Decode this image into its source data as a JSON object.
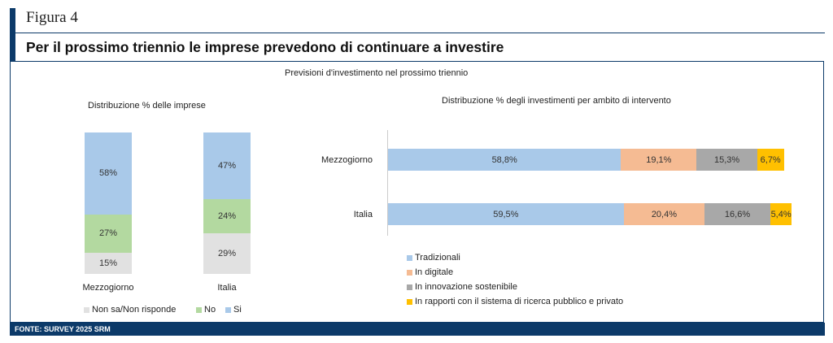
{
  "figure_label": "Figura 4",
  "title": "Per il prossimo triennio le imprese prevedono di continuare a investire",
  "subtitle": "Previsioni d'investimento nel prossimo triennio",
  "footer": "FONTE: SURVEY 2025 SRM",
  "colors": {
    "si": "#a9c9e9",
    "no": "#b3d9a0",
    "nsnr": "#e1e1e1",
    "trad": "#a9c9e9",
    "dig": "#f5bb93",
    "innov": "#a8a8a8",
    "ric": "#ffc000"
  },
  "chart_data": [
    {
      "type": "bar",
      "stacked": true,
      "title": "Distribuzione % delle imprese",
      "categories": [
        "Mezzogiorno",
        "Italia"
      ],
      "series": [
        {
          "name": "Non sa/Non risponde",
          "values": [
            15,
            29
          ],
          "labels": [
            "15%",
            "29%"
          ]
        },
        {
          "name": "No",
          "values": [
            27,
            24
          ],
          "labels": [
            "27%",
            "24%"
          ]
        },
        {
          "name": "Si",
          "values": [
            58,
            47
          ],
          "labels": [
            "58%",
            "47%"
          ]
        }
      ],
      "ylim": [
        0,
        100
      ],
      "legend": "bottom"
    },
    {
      "type": "bar",
      "orientation": "horizontal",
      "stacked": true,
      "title": "Distribuzione % degli investimenti per ambito di intervento",
      "categories": [
        "Mezzogiorno",
        "Italia"
      ],
      "series": [
        {
          "name": "Tradizionali",
          "values": [
            58.8,
            59.5
          ],
          "labels": [
            "58,8%",
            "59,5%"
          ]
        },
        {
          "name": "In digitale",
          "values": [
            19.1,
            20.4
          ],
          "labels": [
            "19,1%",
            "20,4%"
          ]
        },
        {
          "name": "In innovazione sostenibile",
          "values": [
            15.3,
            16.6
          ],
          "labels": [
            "15,3%",
            "16,6%"
          ]
        },
        {
          "name": "In rapporti con il sistema di ricerca pubblico e privato",
          "values": [
            6.7,
            5.4
          ],
          "labels": [
            "6,7%",
            "5,4%"
          ]
        }
      ],
      "xlim": [
        0,
        100
      ],
      "legend": "bottom-left"
    }
  ]
}
